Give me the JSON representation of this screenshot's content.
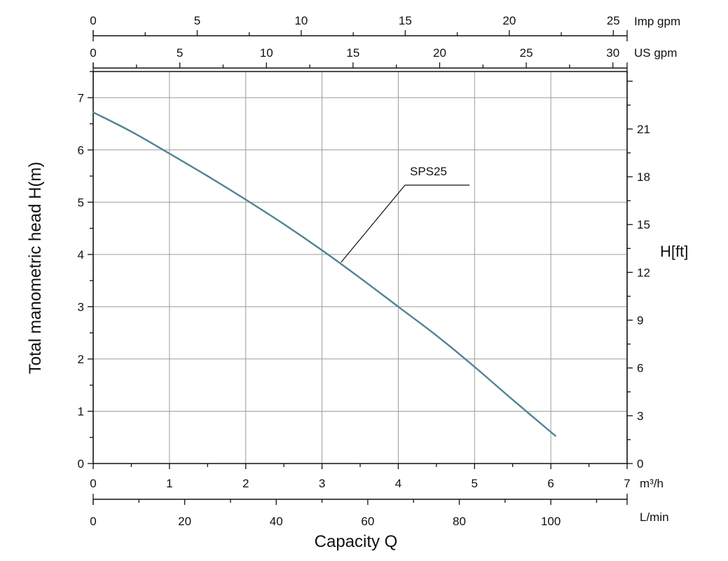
{
  "chart_data": {
    "type": "line",
    "xlabel": "Capacity Q",
    "ylabel": "Total manometric head H(m)",
    "ylabel_right": "H[ft]",
    "x_unit": "m³/h",
    "x": [
      0,
      0.5,
      1,
      1.5,
      2,
      2.5,
      3,
      3.5,
      4,
      4.5,
      5,
      5.5,
      6.06
    ],
    "series": [
      {
        "name": "SPS25",
        "values": [
          6.72,
          6.35,
          5.93,
          5.5,
          5.05,
          4.58,
          4.08,
          3.55,
          3.0,
          2.45,
          1.85,
          1.22,
          0.53
        ],
        "color": "#4f8493"
      }
    ],
    "xlim": [
      0,
      7
    ],
    "ylim": [
      0,
      7.5
    ],
    "x_ticks": [
      "0",
      "1",
      "2",
      "3",
      "4",
      "5",
      "6",
      "7"
    ],
    "y_ticks": [
      "0",
      "1",
      "2",
      "3",
      "4",
      "5",
      "6",
      "7"
    ],
    "secondary_axes": {
      "right_ft": {
        "label": "H[ft]",
        "ticks": [
          "0",
          "3",
          "6",
          "9",
          "12",
          "15",
          "18",
          "21"
        ],
        "values": [
          0,
          3,
          6,
          9,
          12,
          15,
          18,
          21
        ],
        "ft_per_m": 3.28084
      },
      "bottom_lmin": {
        "label": "L/min",
        "ticks": [
          "0",
          "20",
          "40",
          "60",
          "80",
          "100"
        ],
        "values": [
          0,
          20,
          40,
          60,
          80,
          100
        ],
        "minor_step": 10,
        "max": 116.667,
        "per_m3h": 16.6667
      },
      "top_usgpm": {
        "label": "US gpm",
        "ticks": [
          "0",
          "5",
          "10",
          "15",
          "20",
          "25",
          "30"
        ],
        "values": [
          0,
          5,
          10,
          15,
          20,
          25,
          30
        ],
        "minor_step": 2.5,
        "max": 30.82,
        "per_m3h": 4.4029
      },
      "top_impgpm": {
        "label": "Imp gpm",
        "ticks": [
          "0",
          "5",
          "10",
          "15",
          "20",
          "25"
        ],
        "values": [
          0,
          5,
          10,
          15,
          20,
          25
        ],
        "minor_step": 2.5,
        "max": 25.67,
        "per_m3h": 3.6662
      }
    },
    "annotations": [
      {
        "text": "SPS25",
        "x": 3.25,
        "y": 3.85
      }
    ],
    "grid": true,
    "colors": {
      "curve": "#4f8493",
      "grid": "#9c9c9c",
      "axis": "#111111"
    }
  }
}
